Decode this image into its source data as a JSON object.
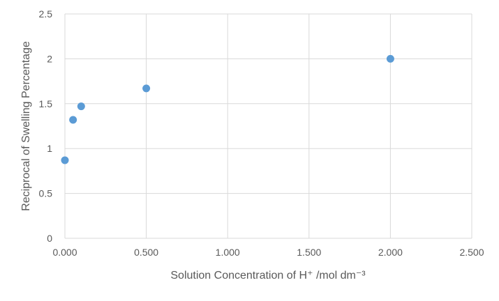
{
  "chart_data": {
    "type": "scatter",
    "title": "",
    "xlabel": "Solution Concentration of H⁺ /mol dm⁻³",
    "ylabel": "Reciprocal of Swelling Percentage",
    "xlim": [
      0,
      2.5
    ],
    "ylim": [
      0,
      2.5
    ],
    "x_ticks": [
      0,
      0.5,
      1.0,
      1.5,
      2.0,
      2.5
    ],
    "x_tick_labels": [
      "0.000",
      "0.500",
      "1.000",
      "1.500",
      "2.000",
      "2.500"
    ],
    "y_ticks": [
      0,
      0.5,
      1,
      1.5,
      2,
      2.5
    ],
    "y_tick_labels": [
      "0",
      "0.5",
      "1",
      "1.5",
      "2",
      "2.5"
    ],
    "grid": true,
    "legend": "none",
    "series": [
      {
        "color": "#5B9BD5",
        "points": [
          {
            "x": 0.0,
            "y": 0.87
          },
          {
            "x": 0.05,
            "y": 1.32
          },
          {
            "x": 0.1,
            "y": 1.47
          },
          {
            "x": 0.5,
            "y": 1.67
          },
          {
            "x": 2.0,
            "y": 2.0
          }
        ]
      }
    ]
  }
}
